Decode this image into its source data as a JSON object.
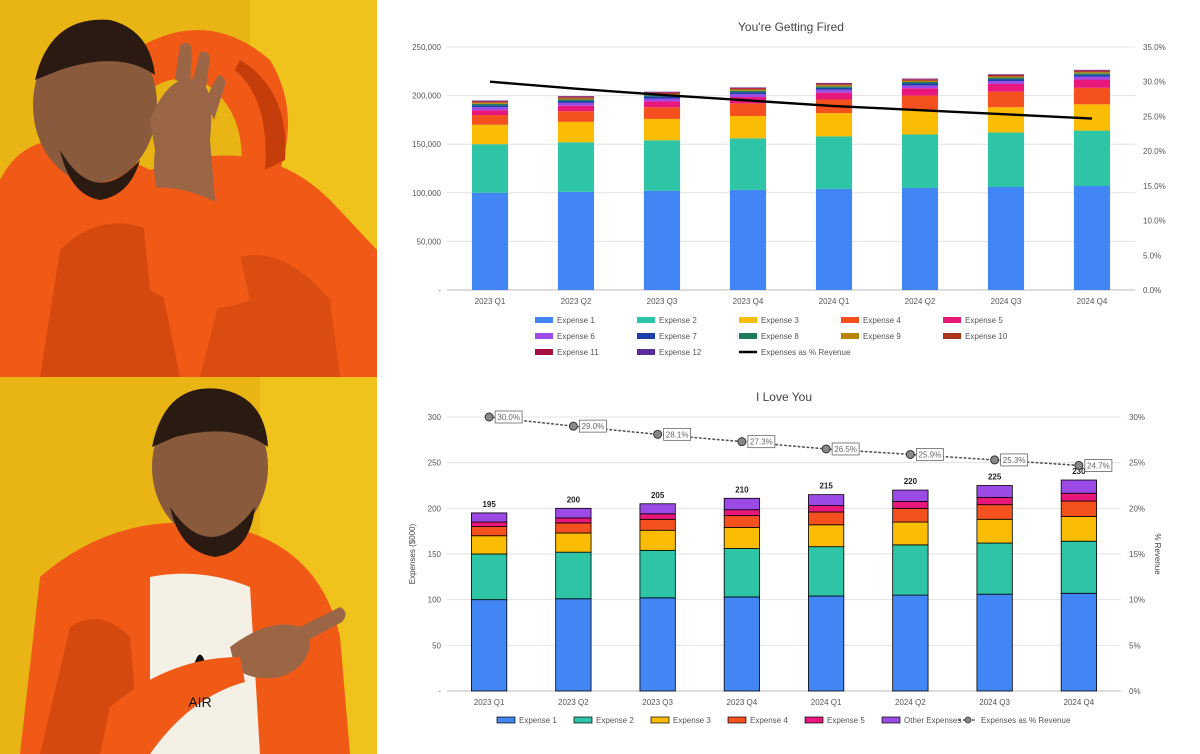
{
  "meme": {
    "top_panel_icon": "drake-disapproving-icon",
    "bottom_panel_icon": "drake-approving-icon",
    "shirt_brand": "AIR",
    "colors": {
      "background": "#e9b514",
      "jacket": "#f05a16",
      "jacket_shadow": "#c53d0a",
      "skin": "#8a5a3c",
      "hair": "#2a1a12"
    }
  },
  "chart_data": [
    {
      "type": "bar",
      "stacked": true,
      "title": "You're Getting Fired",
      "categories": [
        "2023 Q1",
        "2023 Q2",
        "2023 Q3",
        "2023 Q4",
        "2024 Q1",
        "2024 Q2",
        "2024 Q3",
        "2024 Q4"
      ],
      "series": [
        {
          "name": "Expense 1",
          "color": "#4285f4",
          "values": [
            100000,
            101000,
            102000,
            103000,
            104000,
            105000,
            106000,
            107000
          ]
        },
        {
          "name": "Expense 2",
          "color": "#2ec4a6",
          "values": [
            50000,
            51000,
            52000,
            53000,
            54000,
            55000,
            56000,
            57000
          ]
        },
        {
          "name": "Expense 3",
          "color": "#fbbc04",
          "values": [
            20000,
            21000,
            22000,
            23000,
            24000,
            25000,
            26000,
            27000
          ]
        },
        {
          "name": "Expense 4",
          "color": "#f4511e",
          "values": [
            10000,
            11000,
            12000,
            13000,
            14000,
            15000,
            16000,
            17000
          ]
        },
        {
          "name": "Expense 5",
          "color": "#e8177c",
          "values": [
            5000,
            5500,
            6000,
            6500,
            7000,
            7500,
            8000,
            8500
          ]
        },
        {
          "name": "Expense 6",
          "color": "#9c4ae6",
          "values": [
            3000,
            3000,
            3000,
            3000,
            3000,
            3000,
            3000,
            3000
          ]
        },
        {
          "name": "Expense 7",
          "color": "#1a3fa8",
          "values": [
            2000,
            2000,
            2000,
            2000,
            2000,
            2000,
            2000,
            2000
          ]
        },
        {
          "name": "Expense 8",
          "color": "#1f7a5c",
          "values": [
            1500,
            1500,
            1500,
            1500,
            1500,
            1500,
            1500,
            1500
          ]
        },
        {
          "name": "Expense 9",
          "color": "#b8860b",
          "values": [
            1200,
            1200,
            1200,
            1200,
            1200,
            1200,
            1200,
            1200
          ]
        },
        {
          "name": "Expense 10",
          "color": "#a8321c",
          "values": [
            1000,
            1000,
            1000,
            1000,
            1000,
            1000,
            1000,
            1000
          ]
        },
        {
          "name": "Expense 11",
          "color": "#a3123f",
          "values": [
            800,
            800,
            800,
            800,
            800,
            800,
            800,
            800
          ]
        },
        {
          "name": "Expense 12",
          "color": "#5b2a9e",
          "values": [
            500,
            500,
            500,
            500,
            500,
            500,
            500,
            500
          ]
        }
      ],
      "line_series": {
        "name": "Expenses as % Revenue",
        "color": "#000000",
        "values": [
          30.0,
          29.0,
          28.1,
          27.3,
          26.5,
          25.9,
          25.3,
          24.7
        ]
      },
      "y_axis": {
        "min": 0,
        "max": 250000,
        "ticks": [
          "-",
          "50,000",
          "100,000",
          "150,000",
          "200,000",
          "250,000"
        ]
      },
      "y2_axis": {
        "min": 0,
        "max": 35,
        "ticks": [
          "0.0%",
          "5.0%",
          "10.0%",
          "15.0%",
          "20.0%",
          "25.0%",
          "30.0%",
          "35.0%"
        ]
      },
      "legend_position": "bottom"
    },
    {
      "type": "bar",
      "stacked": true,
      "title": "I Love You",
      "categories": [
        "2023 Q1",
        "2023 Q2",
        "2023 Q3",
        "2023 Q4",
        "2024 Q1",
        "2024 Q2",
        "2024 Q3",
        "2024 Q4"
      ],
      "series": [
        {
          "name": "Expense 1",
          "color": "#4285f4",
          "values": [
            100,
            101,
            102,
            103,
            104,
            105,
            106,
            107
          ]
        },
        {
          "name": "Expense 2",
          "color": "#2ec4a6",
          "values": [
            50,
            51,
            52,
            53,
            54,
            55,
            56,
            57
          ]
        },
        {
          "name": "Expense 3",
          "color": "#fbbc04",
          "values": [
            20,
            21,
            22,
            23,
            24,
            25,
            26,
            27
          ]
        },
        {
          "name": "Expense 4",
          "color": "#f4511e",
          "values": [
            10,
            11,
            12,
            13,
            14,
            15,
            16,
            17
          ]
        },
        {
          "name": "Expense 5",
          "color": "#e8177c",
          "values": [
            5,
            5.5,
            6,
            6.5,
            7,
            7.5,
            8,
            8.5
          ]
        },
        {
          "name": "Other Expenses",
          "color": "#9c4ae6",
          "values": [
            10,
            10.5,
            11,
            12.5,
            12,
            12.5,
            13,
            14.5
          ]
        }
      ],
      "totals": [
        "195",
        "200",
        "205",
        "210",
        "215",
        "220",
        "225",
        "230"
      ],
      "line_series": {
        "name": "Expenses as % Revenue",
        "color": "#555555",
        "values": [
          30.0,
          29.0,
          28.1,
          27.3,
          26.5,
          25.9,
          25.3,
          24.7
        ],
        "labels": [
          "30.0%",
          "29.0%",
          "28.1%",
          "27.3%",
          "26.5%",
          "25.9%",
          "25.3%",
          "24.7%"
        ]
      },
      "y_axis": {
        "min": 0,
        "max": 300,
        "label": "Expenses ($000)",
        "ticks": [
          "-",
          "50",
          "100",
          "150",
          "200",
          "250",
          "300"
        ]
      },
      "y2_axis": {
        "min": 0,
        "max": 30,
        "label": "% Revenue",
        "ticks": [
          "0%",
          "5%",
          "10%",
          "15%",
          "20%",
          "25%",
          "30%"
        ]
      },
      "legend_position": "bottom"
    }
  ]
}
